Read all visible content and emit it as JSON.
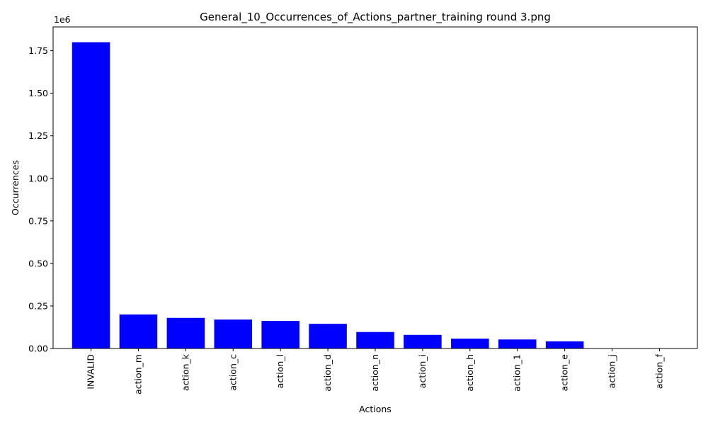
{
  "chart_data": {
    "type": "bar",
    "title": "General_10_Occurrences_of_Actions_partner_training round 3.png",
    "xlabel": "Actions",
    "ylabel": "Occurrences",
    "y_offset_label": "1e6",
    "categories": [
      "INVALID",
      "action_m",
      "action_k",
      "action_c",
      "action_l",
      "action_d",
      "action_n",
      "action_i",
      "action_h",
      "action_1",
      "action_e",
      "action_j",
      "action_f"
    ],
    "values": [
      1800000,
      200000,
      180000,
      170000,
      162000,
      145000,
      97000,
      80000,
      58000,
      53000,
      42000,
      0,
      0
    ],
    "ylim": [
      0,
      1890000
    ],
    "yticks": [
      0,
      250000,
      500000,
      750000,
      1000000,
      1250000,
      1500000,
      1750000
    ],
    "ytick_labels": [
      "0.00",
      "0.25",
      "0.50",
      "0.75",
      "1.00",
      "1.25",
      "1.50",
      "1.75"
    ],
    "bar_color": "#0000ff",
    "grid": false,
    "legend": false
  }
}
